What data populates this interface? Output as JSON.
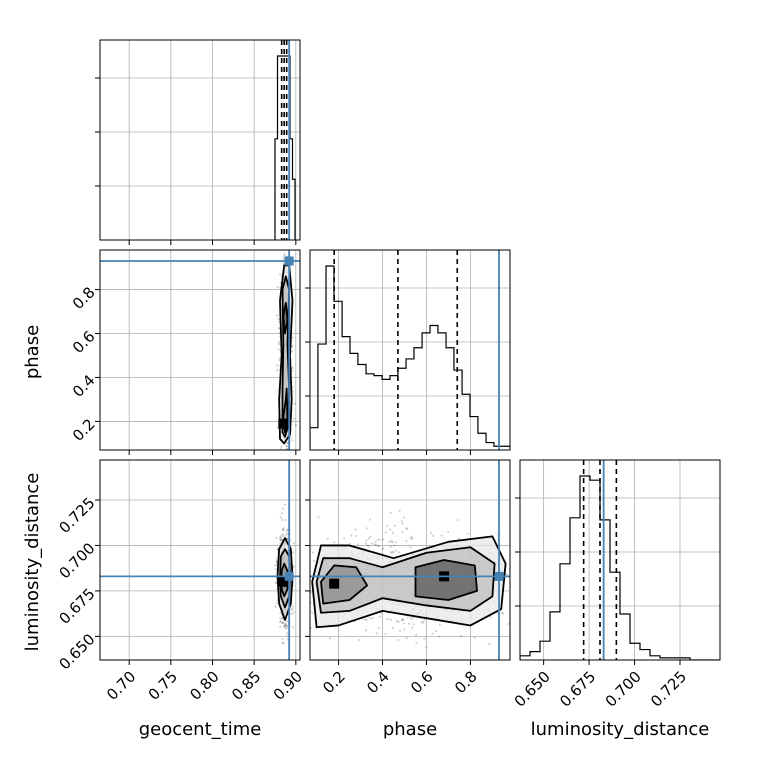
{
  "chart_data": {
    "type": "corner",
    "title": "",
    "parameters": [
      "geocent_time",
      "phase",
      "luminosity_distance"
    ],
    "truth": {
      "geocent_time": 0.892,
      "phase": 0.93,
      "luminosity_distance": 0.683
    },
    "truth_color": "#4682b4",
    "ranges": {
      "geocent_time": [
        0.665,
        0.905
      ],
      "phase": [
        0.07,
        0.98
      ],
      "luminosity_distance": [
        0.637,
        0.747
      ]
    },
    "ticks": {
      "geocent_time": [
        "0.70",
        "0.75",
        "0.80",
        "0.85",
        "0.90"
      ],
      "phase": [
        "0.2",
        "0.4",
        "0.6",
        "0.8"
      ],
      "luminosity_distance": [
        "0.650",
        "0.675",
        "0.700",
        "0.725"
      ]
    },
    "marginals": [
      {
        "parameter": "geocent_time",
        "bin_edges": [
          0.875,
          0.878,
          0.881,
          0.884,
          0.887,
          0.89,
          0.893,
          0.896,
          0.899
        ],
        "counts": [
          0.55,
          1.0,
          1.0,
          1.0,
          1.0,
          1.0,
          0.55,
          0.33
        ],
        "quantiles": [
          0.883,
          0.886,
          0.889
        ]
      },
      {
        "parameter": "phase",
        "bin_edges": [
          0.07,
          0.106,
          0.143,
          0.179,
          0.216,
          0.252,
          0.288,
          0.325,
          0.361,
          0.398,
          0.434,
          0.47,
          0.507,
          0.543,
          0.58,
          0.616,
          0.652,
          0.689,
          0.725,
          0.762,
          0.798,
          0.834,
          0.871,
          0.907,
          0.944,
          0.98
        ],
        "counts": [
          0.12,
          0.57,
          0.99,
          0.8,
          0.61,
          0.52,
          0.46,
          0.41,
          0.4,
          0.38,
          0.4,
          0.44,
          0.49,
          0.55,
          0.63,
          0.67,
          0.63,
          0.55,
          0.43,
          0.3,
          0.18,
          0.09,
          0.04,
          0.02,
          0.02
        ],
        "quantiles": [
          0.18,
          0.47,
          0.74
        ]
      },
      {
        "parameter": "luminosity_distance",
        "bin_edges": [
          0.637,
          0.6425,
          0.648,
          0.6535,
          0.659,
          0.6645,
          0.67,
          0.6755,
          0.681,
          0.6865,
          0.692,
          0.6975,
          0.703,
          0.7085,
          0.714,
          0.7195,
          0.725,
          0.7305,
          0.736,
          0.7415,
          0.747
        ],
        "counts": [
          0.02,
          0.04,
          0.09,
          0.23,
          0.46,
          0.68,
          0.88,
          0.86,
          0.67,
          0.42,
          0.22,
          0.08,
          0.05,
          0.02,
          0.01,
          0.01,
          0.01,
          0.0,
          0.0,
          0.0
        ],
        "quantiles": [
          0.672,
          0.681,
          0.69
        ]
      }
    ],
    "joints": [
      {
        "x": "geocent_time",
        "y": "phase",
        "contours": [
          [
            [
              0.886,
              0.1
            ],
            [
              0.893,
              0.14
            ],
            [
              0.895,
              0.3
            ],
            [
              0.893,
              0.5
            ],
            [
              0.896,
              0.75
            ],
            [
              0.892,
              0.91
            ],
            [
              0.886,
              0.91
            ],
            [
              0.881,
              0.75
            ],
            [
              0.883,
              0.5
            ],
            [
              0.88,
              0.3
            ],
            [
              0.881,
              0.12
            ]
          ],
          [
            [
              0.887,
              0.13
            ],
            [
              0.891,
              0.18
            ],
            [
              0.892,
              0.35
            ],
            [
              0.89,
              0.55
            ],
            [
              0.892,
              0.8
            ],
            [
              0.888,
              0.86
            ],
            [
              0.884,
              0.8
            ],
            [
              0.885,
              0.55
            ],
            [
              0.884,
              0.35
            ],
            [
              0.884,
              0.15
            ]
          ],
          [
            [
              0.887,
              0.15
            ],
            [
              0.89,
              0.2
            ],
            [
              0.889,
              0.35
            ],
            [
              0.888,
              0.3
            ],
            [
              0.885,
              0.22
            ]
          ],
          [
            [
              0.887,
              0.6
            ],
            [
              0.89,
              0.66
            ],
            [
              0.888,
              0.74
            ],
            [
              0.885,
              0.68
            ]
          ]
        ],
        "cores": [
          [
            0.885,
            0.19
          ]
        ]
      },
      {
        "x": "geocent_time",
        "y": "luminosity_distance",
        "contours": [
          [
            [
              0.887,
              0.659
            ],
            [
              0.894,
              0.668
            ],
            [
              0.896,
              0.683
            ],
            [
              0.894,
              0.698
            ],
            [
              0.887,
              0.704
            ],
            [
              0.88,
              0.698
            ],
            [
              0.878,
              0.683
            ],
            [
              0.88,
              0.668
            ]
          ],
          [
            [
              0.887,
              0.666
            ],
            [
              0.892,
              0.672
            ],
            [
              0.893,
              0.683
            ],
            [
              0.892,
              0.694
            ],
            [
              0.887,
              0.698
            ],
            [
              0.882,
              0.694
            ],
            [
              0.881,
              0.683
            ],
            [
              0.882,
              0.672
            ]
          ],
          [
            [
              0.886,
              0.672
            ],
            [
              0.89,
              0.676
            ],
            [
              0.89,
              0.686
            ],
            [
              0.886,
              0.69
            ],
            [
              0.883,
              0.686
            ],
            [
              0.883,
              0.676
            ]
          ]
        ],
        "cores": [
          [
            0.885,
            0.68
          ]
        ]
      },
      {
        "x": "phase",
        "y": "luminosity_distance",
        "contours": [
          [
            [
              0.1,
              0.655
            ],
            [
              0.2,
              0.656
            ],
            [
              0.4,
              0.664
            ],
            [
              0.6,
              0.66
            ],
            [
              0.8,
              0.656
            ],
            [
              0.94,
              0.665
            ],
            [
              0.96,
              0.69
            ],
            [
              0.9,
              0.705
            ],
            [
              0.7,
              0.702
            ],
            [
              0.45,
              0.693
            ],
            [
              0.25,
              0.7
            ],
            [
              0.12,
              0.7
            ],
            [
              0.08,
              0.68
            ]
          ],
          [
            [
              0.12,
              0.663
            ],
            [
              0.25,
              0.664
            ],
            [
              0.4,
              0.671
            ],
            [
              0.6,
              0.667
            ],
            [
              0.8,
              0.664
            ],
            [
              0.9,
              0.672
            ],
            [
              0.91,
              0.69
            ],
            [
              0.8,
              0.699
            ],
            [
              0.6,
              0.696
            ],
            [
              0.4,
              0.688
            ],
            [
              0.25,
              0.693
            ],
            [
              0.13,
              0.693
            ],
            [
              0.1,
              0.68
            ]
          ],
          [
            [
              0.13,
              0.668
            ],
            [
              0.25,
              0.67
            ],
            [
              0.33,
              0.678
            ],
            [
              0.28,
              0.688
            ],
            [
              0.18,
              0.689
            ],
            [
              0.12,
              0.68
            ]
          ],
          [
            [
              0.55,
              0.672
            ],
            [
              0.7,
              0.67
            ],
            [
              0.83,
              0.675
            ],
            [
              0.82,
              0.689
            ],
            [
              0.68,
              0.692
            ],
            [
              0.55,
              0.688
            ]
          ]
        ],
        "cores": [
          [
            0.18,
            0.679
          ],
          [
            0.68,
            0.683
          ]
        ]
      }
    ]
  }
}
